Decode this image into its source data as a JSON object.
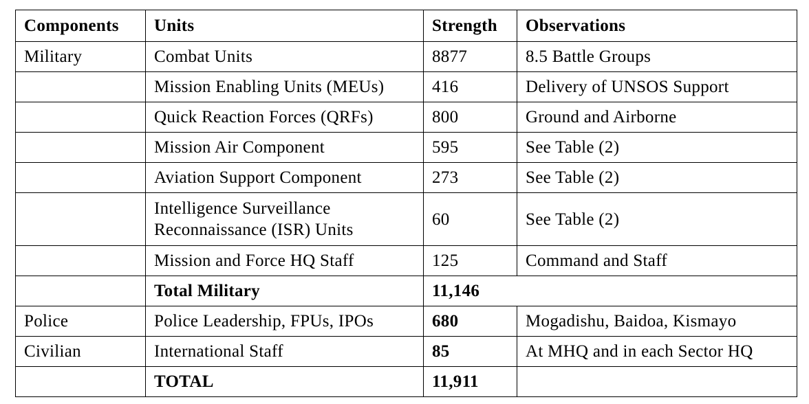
{
  "headers": {
    "components": "Components",
    "units": "Units",
    "strength": "Strength",
    "observations": "Observations"
  },
  "rows": [
    {
      "component": "Military",
      "unit": "Combat Units",
      "strength": "8877",
      "observation": "8.5 Battle Groups"
    },
    {
      "component": "",
      "unit": "Mission Enabling Units (MEUs)",
      "strength": "416",
      "observation": "Delivery of UNSOS Support"
    },
    {
      "component": "",
      "unit": "Quick Reaction Forces (QRFs)",
      "strength": "800",
      "observation": "Ground and Airborne"
    },
    {
      "component": "",
      "unit": "Mission Air Component",
      "strength": "595",
      "observation": "See Table (2)"
    },
    {
      "component": "",
      "unit": "Aviation Support Component",
      "strength": "273",
      "observation": "See Table (2)"
    },
    {
      "component": "",
      "unit_line1": "Intelligence Surveillance",
      "unit_line2": "Reconnaissance (ISR) Units",
      "strength": "60",
      "observation": "See Table (2)"
    },
    {
      "component": "",
      "unit": "Mission and Force HQ Staff",
      "strength": "125",
      "observation": "Command and Staff"
    },
    {
      "component": "",
      "unit": "Total Military",
      "strength": "11,146",
      "observation": ""
    },
    {
      "component": "Police",
      "unit": "Police Leadership, FPUs, IPOs",
      "strength": "680",
      "observation": "Mogadishu, Baidoa, Kismayo"
    },
    {
      "component": "Civilian",
      "unit": "International Staff",
      "strength": "85",
      "observation": "At MHQ and in each Sector HQ"
    },
    {
      "component": "",
      "unit": "TOTAL",
      "strength": "11,911",
      "observation": ""
    }
  ]
}
